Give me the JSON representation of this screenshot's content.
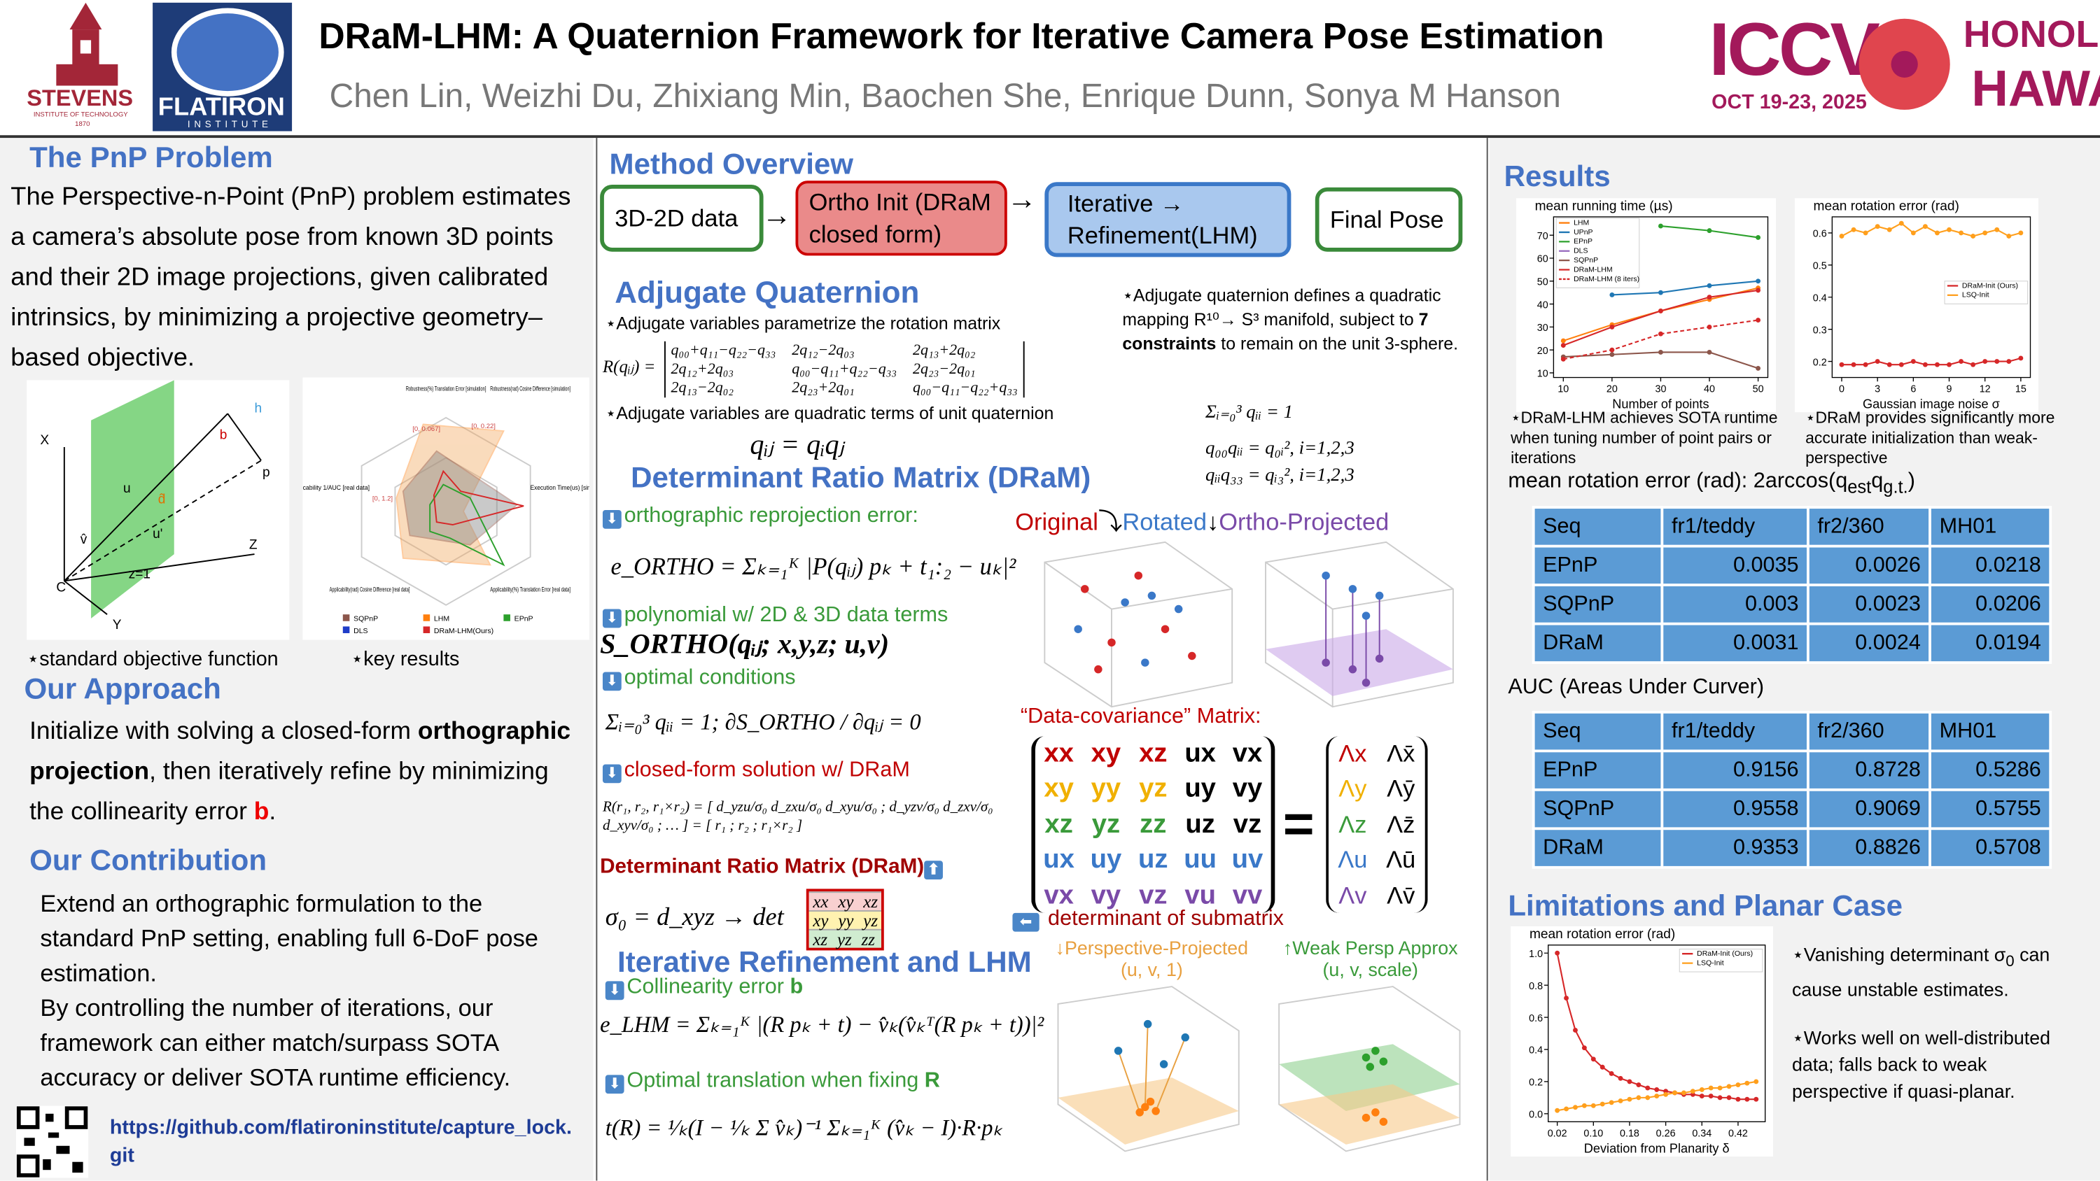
{
  "header": {
    "title": "DRaM-LHM: A Quaternion Framework for Iterative Camera Pose Estimation",
    "authors": "Chen Lin, Weizhi Du, Zhixiang Min, Baochen She, Enrique Dunn, Sonya M Hanson",
    "stevens": "STEVENS",
    "stevens_sub": "INSTITUTE OF TECHNOLOGY",
    "stevens_year": "1870",
    "flatiron": "FLATIRON",
    "flatiron_sub": "INSTITUTE",
    "iccv": "ICCV",
    "iccv_date": "OCT 19-23, 2025",
    "city": "HONOLULU",
    "state": "HAWAII"
  },
  "pnp": {
    "title": "The PnP Problem",
    "text": "The Perspective-n-Point (PnP) problem estimates a camera’s absolute pose from known 3D points and their 2D image projections, given calibrated intrinsics, by minimizing a projective geometry–based objective.",
    "fig_labels": [
      "X",
      "Y",
      "Z",
      "C",
      "u",
      "u'",
      "v̂",
      "d̂",
      "z=1",
      "h",
      "b",
      "p"
    ],
    "radar_labels": [
      "Robustness(%) Translation Error [simulation]",
      "Robustness(rad) Cosine Difference [simulation]",
      "Execution Time(us) [simulation]",
      "Applicability(%) Translation Error [real data]",
      "Applicability(rad) Cosine Difference [real data]",
      "Applicability 1/AUC [real data]"
    ],
    "radar_ranges": [
      "[0, 0.067]",
      "[0, 0.22]",
      "[0, 1.2]"
    ],
    "radar_legend": [
      "SQPnP",
      "LHM",
      "EPnP",
      "DLS",
      "DRaM-LHM(Ours)"
    ],
    "caption1": "⋆standard objective function",
    "caption2": "⋆key results"
  },
  "approach": {
    "title": "Our Approach",
    "parts": [
      "Initialize with solving a closed-form ",
      "orthographic projection",
      ", then iteratively refine by minimizing the collinearity error ",
      "b",
      "."
    ]
  },
  "contribution": {
    "title": "Our Contribution",
    "paragraphs": [
      "Extend an orthographic formulation to the standard PnP setting, enabling full 6-DoF pose estimation.",
      "By controlling the number of iterations, our framework can either match/surpass SOTA accuracy or deliver SOTA  runtime efficiency."
    ]
  },
  "link": "https://github.com/flatironinstitute/capture_lock.git",
  "method": {
    "title": "Method Overview",
    "steps": [
      "3D-2D data",
      "Ortho Init (DRaM closed form)",
      "Iterative → Refinement(LHM)",
      "Final Pose"
    ]
  },
  "adjugate": {
    "title": "Adjugate Quaternion",
    "note1": "⋆Adjugate variables parametrize the rotation matrix",
    "r_label": "R(qᵢⱼ) =",
    "r_rows": [
      [
        "q₀₀+q₁₁−q₂₂−q₃₃",
        "2q₁₂−2q₀₃",
        "2q₁₃+2q₀₂"
      ],
      [
        "2q₁₂+2q₀₃",
        "q₀₀−q₁₁+q₂₂−q₃₃",
        "2q₂₃−2q₀₁"
      ],
      [
        "2q₁₃−2q₀₂",
        "2q₂₃+2q₀₁",
        "q₀₀−q₁₁−q₂₂+q₃₃"
      ]
    ],
    "note2": "⋆Adjugate variables are quadratic terms of unit quaternion",
    "eq": "qᵢⱼ = qᵢqⱼ",
    "side_parts": [
      "⋆Adjugate quaternion defines a quadratic mapping R¹⁰→ S³ manifold, subject to ",
      "7 constraints",
      " to remain on the unit 3-sphere."
    ],
    "constraints": [
      "Σᵢ₌₀³ qᵢᵢ = 1",
      "q₀₀qᵢᵢ = q₀ᵢ², i=1,2,3",
      "qᵢᵢq₃₃ = qᵢ₃², i=1,2,3"
    ]
  },
  "dram": {
    "title": "Determinant Ratio Matrix (DRaM)",
    "step1": "orthographic reprojection error:",
    "eq1": "e_ORTHO = Σₖ₌₁ᴷ |P(qᵢⱼ) pₖ + t₁:₂ − uₖ|²",
    "step2": "polynomial w/ 2D & 3D data terms",
    "eq2": "S_ORTHO(qᵢⱼ; x,y,z; u,v)",
    "step3": "optimal conditions",
    "eq3": "Σᵢ₌₀³ qᵢᵢ = 1;  ∂S_ORTHO / ∂qᵢⱼ = 0",
    "step4": "closed-form solution w/ DRaM",
    "eq4": "R(r₁, r₂, r₁×r₂) = [ d_yzu/σ₀  d_zxu/σ₀  d_xyu/σ₀ ; d_yzv/σ₀  d_zxv/σ₀  d_xyv/σ₀ ; … ] = [ r₁ ; r₂ ; r₁×r₂ ]",
    "step5": "Determinant Ratio Matrix (DRaM)",
    "eq5": "σ₀ = d_xyz → det",
    "det_rows": [
      [
        "xx",
        "xy",
        "xz"
      ],
      [
        "xy",
        "yy",
        "yz"
      ],
      [
        "xz",
        "yz",
        "zz"
      ]
    ],
    "views": [
      "Original",
      "Rotated",
      "Ortho-Projected"
    ],
    "cov_title": "“Data-covariance” Matrix:",
    "cov_rows": [
      [
        "xx",
        "xy",
        "xz",
        "ux",
        "vx"
      ],
      [
        "xy",
        "yy",
        "yz",
        "uy",
        "vy"
      ],
      [
        "xz",
        "yz",
        "zz",
        "uz",
        "vz"
      ],
      [
        "ux",
        "uy",
        "uz",
        "uu",
        "uv"
      ],
      [
        "vx",
        "vy",
        "vz",
        "vu",
        "vv"
      ]
    ],
    "cov_colors": [
      "#c00000",
      "#f0b000",
      "#3a9a3a",
      "#3a78c8",
      "#7a4aa8"
    ],
    "equals": "=",
    "lambda_rows": [
      [
        "Λx",
        "Λx̄"
      ],
      [
        "Λy",
        "Λȳ"
      ],
      [
        "Λz",
        "Λz̄"
      ],
      [
        "Λu",
        "Λū"
      ],
      [
        "Λv",
        "Λv̄"
      ]
    ],
    "submatrix": "determinant of submatrix",
    "persp": "↓Perspective-Projected",
    "persp_sub": "(u, v, 1)",
    "weak": "↑Weak Persp Approx",
    "weak_sub": "(u, v, scale)"
  },
  "iterative": {
    "title": "Iterative Refinement and LHM",
    "step1": "Collinearity error ",
    "step1_b": "b",
    "eq1": "e_LHM = Σₖ₌₁ᴷ |(R pₖ + t) − v̂ₖ(v̂ₖᵀ(R pₖ + t))|²",
    "step2": "Optimal translation when fixing ",
    "step2_b": "R",
    "eq2": "t(R) = ¹⁄ₖ(I − ¹⁄ₖ Σ v̂ₖ)⁻¹ Σₖ₌₁ᴷ (v̂ₖ − I)·R·pₖ"
  },
  "results": {
    "title": "Results",
    "plots": [
      {
        "type": "line",
        "title": "mean running time (µs)",
        "xlabel": "Number of points",
        "x": [
          10,
          20,
          30,
          40,
          50
        ],
        "xlim": [
          8,
          52
        ],
        "ylim": [
          8,
          78
        ],
        "xticks": [
          10,
          20,
          30,
          40,
          50
        ],
        "yticks": [
          10,
          20,
          30,
          40,
          50,
          60,
          70
        ],
        "series": [
          {
            "name": "LHM",
            "color": "#ff7f0e",
            "values": [
              24,
              31,
              37,
              42,
              47
            ]
          },
          {
            "name": "UPnP",
            "color": "#1f77b4",
            "values": [
              null,
              44,
              45,
              48,
              50
            ]
          },
          {
            "name": "EPnP",
            "color": "#2ca02c",
            "values": [
              null,
              null,
              74,
              72,
              69
            ]
          },
          {
            "name": "DLS",
            "color": "#9467bd",
            "values": [
              null,
              null,
              null,
              null,
              null
            ]
          },
          {
            "name": "SQPnP",
            "color": "#8c564b",
            "values": [
              17,
              18,
              19,
              19,
              12
            ]
          },
          {
            "name": "DRaM-LHM",
            "color": "#d62728",
            "values": [
              22,
              30,
              37,
              43,
              46
            ]
          },
          {
            "name": "DRaM-LHM (8 iters)",
            "color": "#d62728",
            "dashed": true,
            "values": [
              16,
              20,
              27,
              30,
              33
            ]
          }
        ],
        "legend": "upper left"
      },
      {
        "type": "line",
        "title": "mean rotation error (rad)",
        "xlabel": "Gaussian image noise σ",
        "x": [
          0,
          1,
          2,
          3,
          4,
          5,
          6,
          7,
          8,
          9,
          10,
          11,
          12,
          13,
          14,
          15
        ],
        "xlim": [
          -0.8,
          15.8
        ],
        "ylim": [
          0.15,
          0.65
        ],
        "xticks": [
          0,
          3,
          6,
          9,
          12,
          15
        ],
        "yticks": [
          0.2,
          0.3,
          0.4,
          0.5,
          0.6
        ],
        "series": [
          {
            "name": "DRaM-Init (Ours)",
            "color": "#d62728",
            "values": [
              0.19,
              0.19,
              0.19,
              0.2,
              0.19,
              0.19,
              0.2,
              0.19,
              0.19,
              0.19,
              0.2,
              0.19,
              0.2,
              0.2,
              0.2,
              0.21
            ]
          },
          {
            "name": "LSQ-Init",
            "color": "#ff9f1c",
            "values": [
              0.59,
              0.61,
              0.6,
              0.62,
              0.61,
              0.63,
              0.6,
              0.62,
              0.6,
              0.61,
              0.6,
              0.59,
              0.6,
              0.61,
              0.59,
              0.6
            ]
          }
        ],
        "legend": "center right"
      }
    ],
    "caption1": "⋆DRaM-LHM achieves SOTA runtime when tuning number of point pairs or iterations",
    "caption2": "⋆DRaM provides significantly more accurate initialization than weak-perspective",
    "metric_parts": [
      "mean rotation error (rad): 2arccos(q",
      "est",
      "q",
      "g.t.",
      ")"
    ],
    "tables": [
      {
        "header": [
          "Seq",
          "fr1/teddy",
          "fr2/360",
          "MH01"
        ],
        "rows": [
          [
            "EPnP",
            0.0035,
            0.0026,
            0.0218
          ],
          [
            "SQPnP",
            0.003,
            0.0023,
            0.0206
          ],
          [
            "DRaM",
            0.0031,
            0.0024,
            0.0194
          ]
        ]
      },
      {
        "header": [
          "Seq",
          "fr1/teddy",
          "fr2/360",
          "MH01"
        ],
        "rows": [
          [
            "EPnP",
            0.9156,
            0.8728,
            0.5286
          ],
          [
            "SQPnP",
            0.9558,
            0.9069,
            0.5755
          ],
          [
            "DRaM",
            0.9353,
            0.8826,
            0.5708
          ]
        ]
      }
    ],
    "auc_title": "AUC (Areas Under Curver)"
  },
  "limitations": {
    "title": "Limitations and Planar Case",
    "plot": {
      "type": "line",
      "title": "mean rotation error (rad)",
      "xlabel": "Deviation from Planarity δ",
      "x": [
        0.02,
        0.04,
        0.06,
        0.08,
        0.1,
        0.12,
        0.14,
        0.16,
        0.18,
        0.2,
        0.22,
        0.24,
        0.26,
        0.28,
        0.3,
        0.32,
        0.34,
        0.36,
        0.38,
        0.4,
        0.42,
        0.44,
        0.46
      ],
      "xlim": [
        0,
        0.48
      ],
      "ylim": [
        -0.05,
        1.05
      ],
      "xticks": [
        0.02,
        {
          "value": 0.1,
          "label": "0.10"
        },
        0.18,
        0.26,
        0.34,
        0.42
      ],
      "yticks": [
        {
          "value": 0,
          "label": "0.0"
        },
        0.2,
        0.4,
        0.6,
        0.8,
        {
          "value": 1,
          "label": "1.0"
        }
      ],
      "series": [
        {
          "name": "DRaM-Init (Ours)",
          "color": "#d62728",
          "values": [
            1.0,
            0.72,
            0.52,
            0.41,
            0.34,
            0.29,
            0.25,
            0.22,
            0.2,
            0.18,
            0.16,
            0.15,
            0.14,
            0.13,
            0.12,
            0.12,
            0.11,
            0.11,
            0.1,
            0.1,
            0.09,
            0.09,
            0.09
          ]
        },
        {
          "name": "LSQ-Init",
          "color": "#ff9f1c",
          "values": [
            0.02,
            0.03,
            0.04,
            0.05,
            0.05,
            0.06,
            0.07,
            0.08,
            0.09,
            0.1,
            0.1,
            0.11,
            0.12,
            0.13,
            0.13,
            0.14,
            0.15,
            0.16,
            0.16,
            0.17,
            0.18,
            0.19,
            0.2
          ]
        }
      ],
      "legend": "upper right"
    },
    "note1_parts": [
      "⋆Vanishing determinant σ",
      "0",
      " can cause unstable estimates."
    ],
    "note2": "⋆Works well on well-distributed  data; falls back to weak perspective if quasi-planar."
  }
}
